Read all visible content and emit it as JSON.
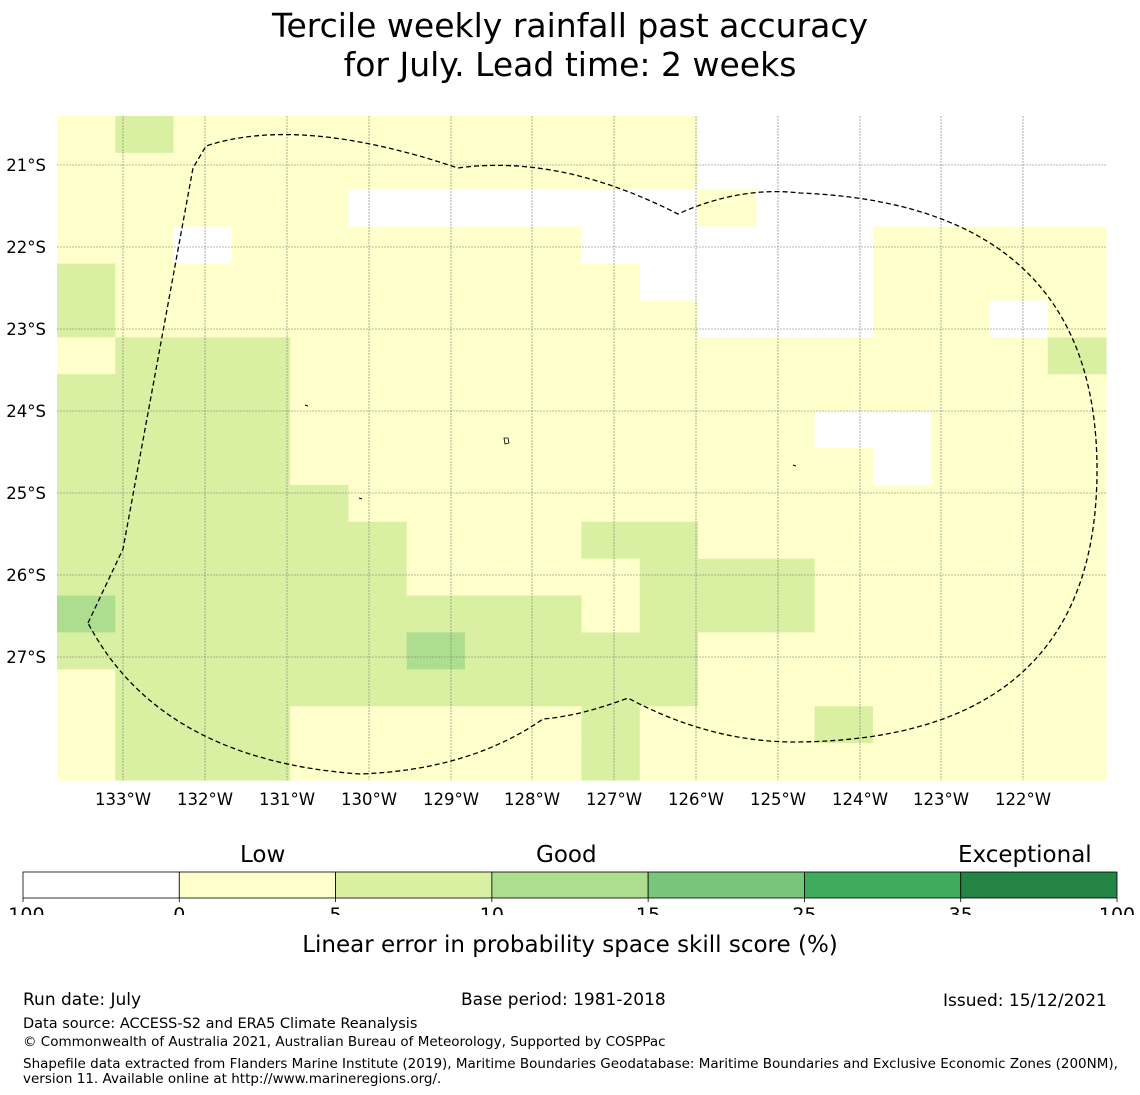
{
  "title": {
    "line1": "Tercile weekly rainfall past accuracy",
    "line2": "for July. Lead time: 2 weeks"
  },
  "map": {
    "lon_labels": [
      "133°W",
      "132°W",
      "131°W",
      "130°W",
      "129°W",
      "128°W",
      "127°W",
      "126°W",
      "125°W",
      "124°W",
      "123°W",
      "122°W"
    ],
    "lat_labels": [
      "21°S",
      "22°S",
      "23°S",
      "24°S",
      "25°S",
      "26°S",
      "27°S"
    ],
    "grid_rows": [
      "WBWWWWWWWWWXXXXXXX",
      "WWWWWWWWWWWXXXXXXX",
      "WWWWWXXXXXXWXXXXXX",
      "WWXWWWWWWXXXXXWWWW",
      "BWWWWWWWWWXXXXWWWW",
      "BWWWWWWWWWWXXXWWXW",
      "WBBBWWWWWWWWWWWWWB",
      "BBBBWWWWWWWWWWWWWW",
      "BBBBWWWWWWWWWXXWWW",
      "BBBBWWWWWWWWWWXWWW",
      "BBBBBWWWWWWWWWWWWW",
      "BBBBBBWWWBBWWWWWWW",
      "BBBBBBWWWWBBBWWWWW",
      "CBBBBBBBBWBBBWWWWW",
      "BBBBBBCBBBBWWWWWWW",
      "WBBBBBBBBBBWWWWWWW",
      "WBBBWWWWWBWWWBWWWW",
      "WBBBWWWWWBWWWWWWWW"
    ],
    "color_key": {
      "X": "#ffffff",
      "W": "#ffffcc",
      "B": "#d9f0a3",
      "C": "#addd8e"
    }
  },
  "colorbar": {
    "category_labels": [
      "Low",
      "Good",
      "Exceptional"
    ],
    "tick_labels": [
      "-100",
      "0",
      "5",
      "10",
      "15",
      "25",
      "35",
      "100"
    ],
    "colors": [
      "#ffffff",
      "#ffffcc",
      "#d9f0a3",
      "#addd8e",
      "#78c679",
      "#41ab5d",
      "#238443"
    ],
    "label": "Linear error in probability space skill score (%)"
  },
  "footer": {
    "run_date": "Run date: July",
    "base_period": "Base period: 1981-2018",
    "issued": "Issued: 15/12/2021",
    "data_source": "Data source: ACCESS-S2 and ERA5 Climate Reanalysis",
    "copyright": "© Commonwealth of Australia 2021, Australian Bureau of Meteorology, Supported by COSPPac",
    "shapefile": "Shapefile data extracted from Flanders Marine Institute (2019), Maritime Boundaries Geodatabase: Maritime Boundaries and Exclusive Economic Zones (200NM), version 11. Available online at http://www.marineregions.org/."
  }
}
